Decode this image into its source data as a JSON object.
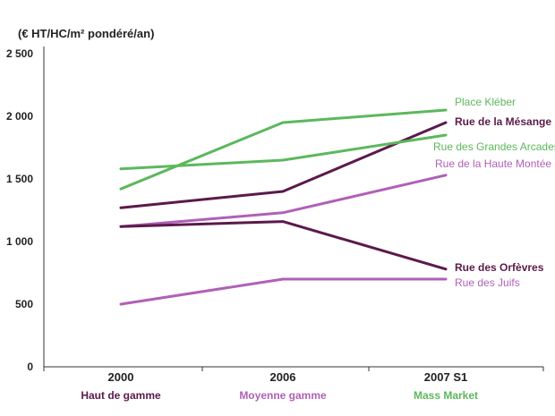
{
  "chart_data": {
    "type": "line",
    "ylabel": "(€ HT/HC/m² pondéré/an)",
    "ylim": [
      0,
      2500
    ],
    "y_ticks": [
      0,
      500,
      1000,
      1500,
      2000,
      2500
    ],
    "y_tick_labels": [
      "0",
      "500",
      "1 000",
      "1 500",
      "2 000",
      "2 500"
    ],
    "categories": [
      "2000",
      "2006",
      "2007 S1"
    ],
    "category_sublabels": [
      {
        "text": "Haut de gamme",
        "color": "#5b1a4a"
      },
      {
        "text": "Moyenne gamme",
        "color": "#b060b8"
      },
      {
        "text": "Mass Market",
        "color": "#5cb85c"
      }
    ],
    "series": [
      {
        "name": "Place Kléber",
        "color": "#5cb85c",
        "values": [
          1420,
          1950,
          2050
        ]
      },
      {
        "name": "Rue de la Mésange",
        "color": "#5b1a4a",
        "values": [
          1270,
          1400,
          1950
        ]
      },
      {
        "name": "Rue des Grandes Arcades",
        "color": "#5cb85c",
        "values": [
          1580,
          1650,
          1850
        ]
      },
      {
        "name": "Rue de la Haute Montée",
        "color": "#b060b8",
        "values": [
          1120,
          1230,
          1530
        ]
      },
      {
        "name": "Rue des Orfèvres",
        "color": "#5b1a4a",
        "values": [
          1120,
          1160,
          780
        ]
      },
      {
        "name": "Rue des Juifs",
        "color": "#b060b8",
        "values": [
          500,
          700,
          700
        ]
      }
    ],
    "grid": false,
    "legend": "right-end labels"
  }
}
